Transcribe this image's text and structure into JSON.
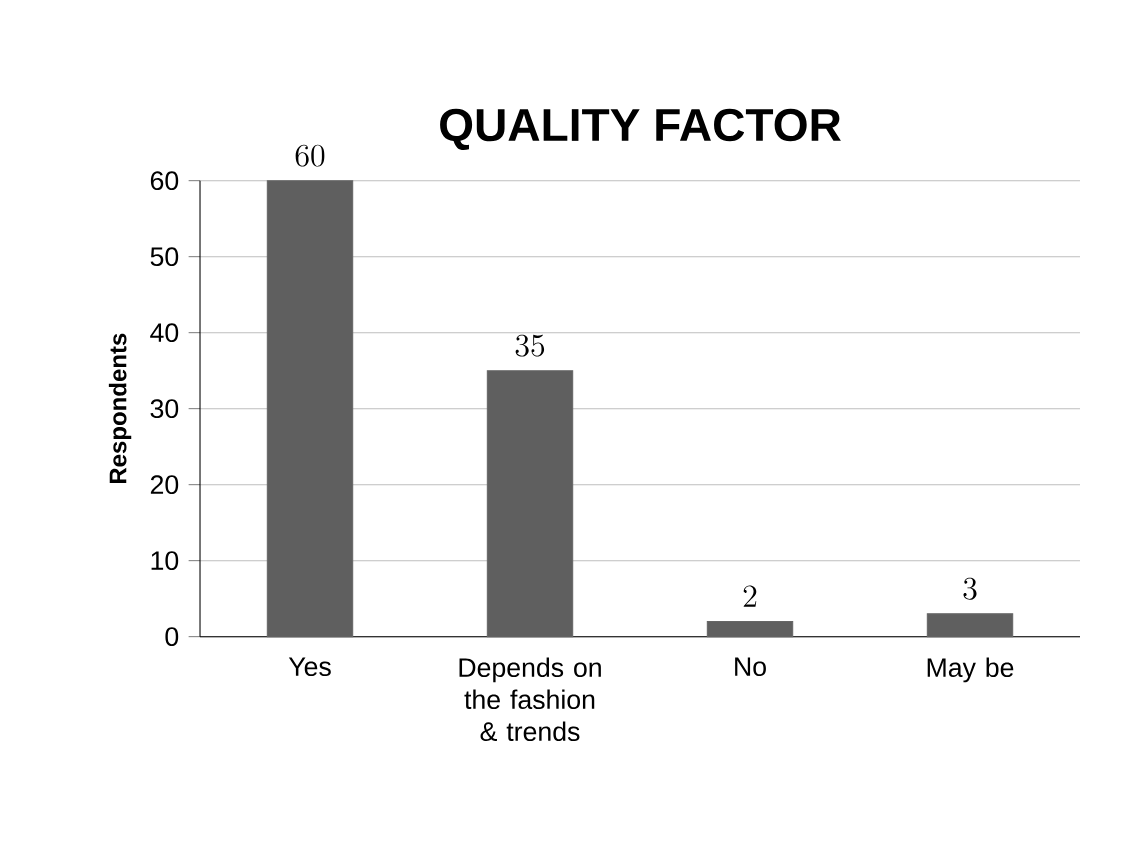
{
  "chart_data": {
    "type": "bar",
    "title": "QUALITY FACTOR",
    "ylabel": "Respondents",
    "categories": [
      "Yes",
      "Depends on the fashion & trends",
      "No",
      "May be"
    ],
    "values": [
      60,
      35,
      2,
      3
    ],
    "color": "#5f5f5f",
    "ylim": [
      0,
      60
    ],
    "yticks": [
      0,
      10,
      20,
      30,
      40,
      50,
      60
    ],
    "grid": "y",
    "data_labels": true
  }
}
